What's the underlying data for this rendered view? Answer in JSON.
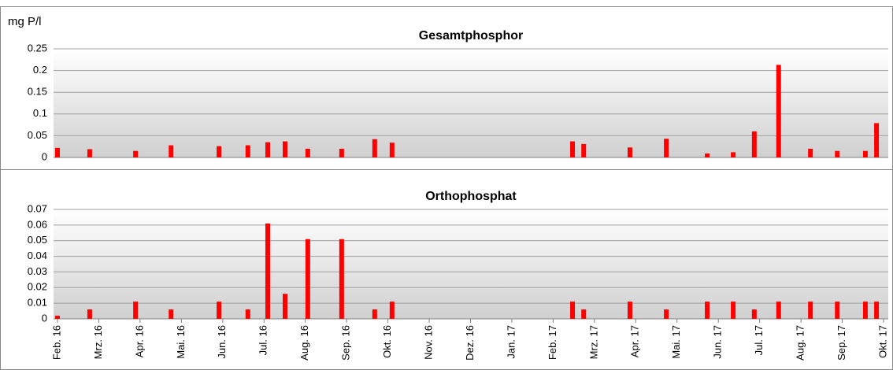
{
  "chart_data": [
    {
      "type": "bar",
      "title": "Gesamtphosphor",
      "ylabel": "mg P/l",
      "color": "#ff0000",
      "grid": true,
      "xlim": [
        0,
        20
      ],
      "x": [
        0,
        0.78,
        1.89,
        2.75,
        3.91,
        4.61,
        5.09,
        5.51,
        6.06,
        6.88,
        7.68,
        8.1,
        12.47,
        12.74,
        13.86,
        14.74,
        15.73,
        16.36,
        16.87,
        17.46,
        18.23,
        18.88,
        19.56,
        19.83
      ],
      "values": [
        0.022,
        0.019,
        0.015,
        0.028,
        0.026,
        0.028,
        0.035,
        0.037,
        0.02,
        0.02,
        0.042,
        0.034,
        0.037,
        0.031,
        0.023,
        0.043,
        0.009,
        0.012,
        0.06,
        0.213,
        0.02,
        0.015,
        0.015,
        0.079
      ],
      "ylim": [
        0,
        0.25
      ],
      "yticks": [
        0,
        0.05,
        0.1,
        0.15,
        0.2,
        0.25
      ]
    },
    {
      "type": "bar",
      "title": "Orthophosphat",
      "color": "#ff0000",
      "grid": true,
      "xlim": [
        0,
        20
      ],
      "xticks": [
        {
          "value": 0,
          "label": "Feb. 16"
        },
        {
          "value": 1,
          "label": "Mrz. 16"
        },
        {
          "value": 2,
          "label": "Apr. 16"
        },
        {
          "value": 3,
          "label": "Mai. 16"
        },
        {
          "value": 4,
          "label": "Jun. 16"
        },
        {
          "value": 5,
          "label": "Jul. 16"
        },
        {
          "value": 6,
          "label": "Aug. 16"
        },
        {
          "value": 7,
          "label": "Sep. 16"
        },
        {
          "value": 8,
          "label": "Okt. 16"
        },
        {
          "value": 9,
          "label": "Nov. 16"
        },
        {
          "value": 10,
          "label": "Dez. 16"
        },
        {
          "value": 11,
          "label": "Jan. 17"
        },
        {
          "value": 12,
          "label": "Feb. 17"
        },
        {
          "value": 13,
          "label": "Mrz. 17"
        },
        {
          "value": 14,
          "label": "Apr. 17"
        },
        {
          "value": 15,
          "label": "Mai. 17"
        },
        {
          "value": 16,
          "label": "Jun. 17"
        },
        {
          "value": 17,
          "label": "Jul. 17"
        },
        {
          "value": 18,
          "label": "Aug. 17"
        },
        {
          "value": 19,
          "label": "Sep. 17"
        },
        {
          "value": 20,
          "label": "Okt. 17"
        }
      ],
      "x": [
        0,
        0.78,
        1.89,
        2.75,
        3.91,
        4.61,
        5.09,
        5.51,
        6.06,
        6.88,
        7.68,
        8.1,
        12.47,
        12.74,
        13.86,
        14.74,
        15.73,
        16.36,
        16.87,
        17.46,
        18.23,
        18.88,
        19.56,
        19.83
      ],
      "values": [
        0.002,
        0.006,
        0.011,
        0.006,
        0.011,
        0.006,
        0.061,
        0.016,
        0.051,
        0.051,
        0.006,
        0.011,
        0.011,
        0.006,
        0.011,
        0.006,
        0.011,
        0.011,
        0.006,
        0.011,
        0.011,
        0.011,
        0.011,
        0.011
      ],
      "ylim": [
        0,
        0.07
      ],
      "yticks": [
        0,
        0.01,
        0.02,
        0.03,
        0.04,
        0.05,
        0.06,
        0.07
      ]
    }
  ]
}
